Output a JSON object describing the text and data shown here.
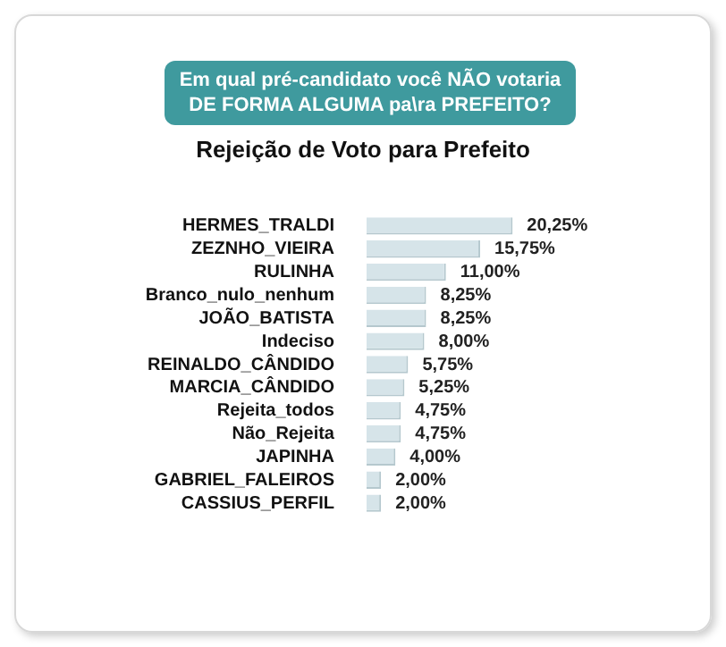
{
  "chart_data": {
    "type": "bar",
    "orientation": "horizontal",
    "title": "Em qual pré-candidato você NÃO votaria DE FORMA ALGUMA pa\\ra PREFEITO?",
    "subtitle": "Rejeição de Voto para Prefeito",
    "categories": [
      "HERMES_TRALDI",
      "ZEZNHO_VIEIRA",
      "RULINHA",
      "Branco_nulo_nenhum",
      "JOÃO_BATISTA",
      "Indeciso",
      "REINALDO_CÂNDIDO",
      "MARCIA_CÂNDIDO",
      "Rejeita_todos",
      "Não_Rejeita",
      "JAPINHA",
      "GABRIEL_FALEIROS",
      "CASSIUS_PERFIL"
    ],
    "values": [
      20.25,
      15.75,
      11.0,
      8.25,
      8.25,
      8.0,
      5.75,
      5.25,
      4.75,
      4.75,
      4.0,
      2.0,
      2.0
    ],
    "value_labels": [
      "20,25%",
      "15,75%",
      "11,00%",
      "8,25%",
      "8,25%",
      "8,00%",
      "5,75%",
      "5,25%",
      "4,75%",
      "4,75%",
      "4,00%",
      "2,00%",
      "2,00%"
    ],
    "color": "#d6e4e9",
    "grid": false,
    "legend": false,
    "tick_labels": "y"
  }
}
